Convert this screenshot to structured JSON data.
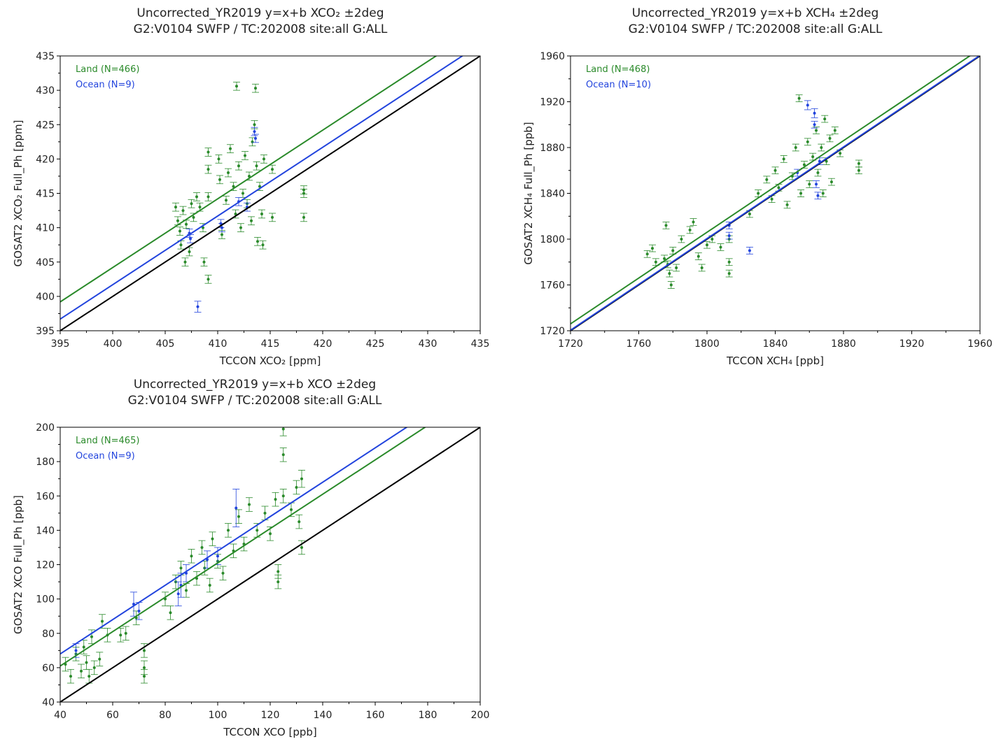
{
  "colors": {
    "land": "#2a8a2a",
    "ocean": "#2244dd",
    "one_to_one": "#000000"
  },
  "chart_data": [
    {
      "type": "scatter",
      "title": [
        "Uncorrected_YR2019 y=x+b  XCO₂ ±2deg",
        "G2:V0104 SWFP / TC:202008 site:all G:ALL"
      ],
      "xlabel": "TCCON XCO₂ [ppm]",
      "ylabel": "GOSAT2 XCO₂ Full_Ph [ppm]",
      "xlim": [
        395,
        435
      ],
      "ylim": [
        395,
        435
      ],
      "xticks": [
        395,
        400,
        405,
        410,
        415,
        420,
        425,
        430,
        435
      ],
      "yticks": [
        395,
        400,
        405,
        410,
        415,
        420,
        425,
        430,
        435
      ],
      "legend_position": "top-left",
      "series": [
        {
          "name": "Land (N=466)",
          "color": "land",
          "offset": 4.2,
          "points": [
            [
              406,
              413,
              0.6
            ],
            [
              406.2,
              411,
              0.6
            ],
            [
              406.4,
              409.5,
              0.6
            ],
            [
              406.5,
              407.5,
              0.6
            ],
            [
              406.7,
              412.5,
              0.6
            ],
            [
              406.9,
              405,
              0.6
            ],
            [
              407,
              410.5,
              0.6
            ],
            [
              407.3,
              406.5,
              0.6
            ],
            [
              407.5,
              413.5,
              0.6
            ],
            [
              407.7,
              411.5,
              0.6
            ],
            [
              408,
              414.5,
              0.6
            ],
            [
              408.3,
              413,
              0.6
            ],
            [
              408.6,
              410,
              0.6
            ],
            [
              408.7,
              405,
              0.6
            ],
            [
              409.1,
              421,
              0.6
            ],
            [
              409.1,
              418.5,
              0.6
            ],
            [
              409.1,
              414.5,
              0.6
            ],
            [
              409.1,
              402.5,
              0.6
            ],
            [
              410.1,
              420,
              0.6
            ],
            [
              410.2,
              417,
              0.6
            ],
            [
              410.4,
              409,
              0.6
            ],
            [
              410.8,
              414,
              0.6
            ],
            [
              411,
              418,
              0.6
            ],
            [
              411.2,
              421.5,
              0.6
            ],
            [
              411.5,
              416,
              0.6
            ],
            [
              411.7,
              412,
              0.6
            ],
            [
              411.8,
              430.6,
              0.6
            ],
            [
              412,
              419,
              0.6
            ],
            [
              412.2,
              410,
              0.6
            ],
            [
              412.4,
              415,
              0.6
            ],
            [
              412.6,
              420.5,
              0.6
            ],
            [
              412.8,
              413.5,
              0.6
            ],
            [
              413,
              417.5,
              0.6
            ],
            [
              413.2,
              411,
              0.6
            ],
            [
              413.3,
              422.5,
              0.6
            ],
            [
              413.5,
              425,
              0.6
            ],
            [
              413.6,
              430.3,
              0.6
            ],
            [
              413.7,
              419,
              0.6
            ],
            [
              413.8,
              408,
              0.6
            ],
            [
              414,
              416,
              0.6
            ],
            [
              414.2,
              412,
              0.6
            ],
            [
              414.4,
              420,
              0.6
            ],
            [
              414.3,
              407.5,
              0.6
            ],
            [
              415.2,
              418.5,
              0.6
            ],
            [
              415.2,
              411.5,
              0.6
            ],
            [
              418.2,
              415.5,
              0.6
            ],
            [
              418.2,
              415,
              0.6
            ],
            [
              418.2,
              411.5,
              0.6
            ]
          ]
        },
        {
          "name": "Ocean (N=9)",
          "color": "ocean",
          "offset": 1.7,
          "points": [
            [
              408.1,
              398.5,
              0.8
            ],
            [
              407.3,
              409.2,
              0.6
            ],
            [
              407.4,
              408.4,
              0.6
            ],
            [
              410.3,
              410.6,
              0.6
            ],
            [
              410.4,
              410,
              0.6
            ],
            [
              412,
              413.8,
              0.6
            ],
            [
              413.5,
              424,
              0.6
            ],
            [
              413.6,
              423,
              0.6
            ],
            [
              412.8,
              413,
              0.6
            ]
          ]
        }
      ]
    },
    {
      "type": "scatter",
      "title": [
        "Uncorrected_YR2019 y=x+b  XCH₄ ±2deg",
        "G2:V0104 SWFP / TC:202008 site:all G:ALL"
      ],
      "xlabel": "TCCON XCH₄ [ppb]",
      "ylabel": "GOSAT2 XCH₄ Full_Ph [ppb]",
      "xlim": [
        1720,
        1960
      ],
      "ylim": [
        1720,
        1960
      ],
      "xticks": [
        1720,
        1760,
        1800,
        1840,
        1880,
        1920,
        1960
      ],
      "yticks": [
        1720,
        1760,
        1800,
        1840,
        1880,
        1920,
        1960
      ],
      "legend_position": "top-left",
      "series": [
        {
          "name": "Land (N=468)",
          "color": "land",
          "offset": 6,
          "points": [
            [
              1765,
              1787,
              3
            ],
            [
              1768,
              1792,
              3
            ],
            [
              1770,
              1780,
              3
            ],
            [
              1775,
              1783,
              3
            ],
            [
              1776,
              1812,
              3
            ],
            [
              1777,
              1778,
              3
            ],
            [
              1778,
              1770,
              3
            ],
            [
              1779,
              1760,
              3
            ],
            [
              1780,
              1790,
              3
            ],
            [
              1782,
              1775,
              3
            ],
            [
              1785,
              1800,
              3
            ],
            [
              1790,
              1808,
              3
            ],
            [
              1792,
              1815,
              3
            ],
            [
              1795,
              1785,
              3
            ],
            [
              1797,
              1775,
              3
            ],
            [
              1800,
              1795,
              3
            ],
            [
              1803,
              1800,
              3
            ],
            [
              1808,
              1793,
              3
            ],
            [
              1813,
              1800,
              3
            ],
            [
              1813,
              1780,
              3
            ],
            [
              1813,
              1770,
              3
            ],
            [
              1825,
              1822,
              3
            ],
            [
              1830,
              1840,
              3
            ],
            [
              1835,
              1852,
              3
            ],
            [
              1838,
              1835,
              3
            ],
            [
              1840,
              1860,
              3
            ],
            [
              1842,
              1845,
              3
            ],
            [
              1845,
              1870,
              3
            ],
            [
              1847,
              1830,
              3
            ],
            [
              1850,
              1855,
              3
            ],
            [
              1852,
              1880,
              3
            ],
            [
              1854,
              1923,
              3
            ],
            [
              1855,
              1840,
              3
            ],
            [
              1857,
              1865,
              3
            ],
            [
              1859,
              1885,
              3
            ],
            [
              1860,
              1848,
              3
            ],
            [
              1862,
              1872,
              3
            ],
            [
              1864,
              1895,
              3
            ],
            [
              1865,
              1858,
              3
            ],
            [
              1867,
              1880,
              3
            ],
            [
              1868,
              1840,
              3
            ],
            [
              1869,
              1905,
              3
            ],
            [
              1870,
              1868,
              3
            ],
            [
              1872,
              1888,
              3
            ],
            [
              1873,
              1850,
              3
            ],
            [
              1875,
              1895,
              3
            ],
            [
              1878,
              1875,
              3
            ],
            [
              1889,
              1866,
              3
            ],
            [
              1889,
              1860,
              3
            ]
          ]
        },
        {
          "name": "Ocean (N=10)",
          "color": "ocean",
          "offset": 0.5,
          "points": [
            [
              1825,
              1790,
              3
            ],
            [
              1859,
              1917,
              4
            ],
            [
              1863,
              1910,
              4
            ],
            [
              1863,
              1900,
              3
            ],
            [
              1864,
              1848,
              3
            ],
            [
              1865,
              1838,
              3
            ],
            [
              1853,
              1858,
              3
            ],
            [
              1813,
              1812,
              3
            ],
            [
              1813,
              1803,
              3
            ],
            [
              1866,
              1868,
              3
            ]
          ]
        }
      ]
    },
    {
      "type": "scatter",
      "title": [
        "Uncorrected_YR2019 y=x+b  XCO ±2deg",
        "G2:V0104 SWFP / TC:202008 site:all G:ALL"
      ],
      "xlabel": "TCCON XCO [ppb]",
      "ylabel": "GOSAT2 XCO Full_Ph [ppb]",
      "xlim": [
        40,
        200
      ],
      "ylim": [
        40,
        200
      ],
      "xticks": [
        40,
        60,
        80,
        100,
        120,
        140,
        160,
        180,
        200
      ],
      "yticks": [
        40,
        60,
        80,
        100,
        120,
        140,
        160,
        180,
        200
      ],
      "legend_position": "top-left",
      "series": [
        {
          "name": "Land (N=465)",
          "color": "land",
          "offset": 21,
          "points": [
            [
              42,
              62,
              4
            ],
            [
              44,
              55,
              4
            ],
            [
              46,
              68,
              4
            ],
            [
              48,
              58,
              4
            ],
            [
              49,
              72,
              4
            ],
            [
              50,
              63,
              4
            ],
            [
              51,
              55,
              4
            ],
            [
              52,
              78,
              4
            ],
            [
              53,
              60,
              4
            ],
            [
              55,
              65,
              4
            ],
            [
              56,
              87,
              4
            ],
            [
              58,
              79,
              4
            ],
            [
              63,
              79,
              4
            ],
            [
              65,
              80,
              4
            ],
            [
              69,
              89,
              4
            ],
            [
              72,
              70,
              4
            ],
            [
              72,
              60,
              4
            ],
            [
              72,
              55,
              4
            ],
            [
              80,
              100,
              4
            ],
            [
              82,
              92,
              4
            ],
            [
              84,
              110,
              4
            ],
            [
              86,
              118,
              4
            ],
            [
              88,
              105,
              4
            ],
            [
              90,
              125,
              4
            ],
            [
              92,
              112,
              4
            ],
            [
              94,
              130,
              4
            ],
            [
              95,
              118,
              4
            ],
            [
              97,
              108,
              4
            ],
            [
              98,
              135,
              4
            ],
            [
              100,
              122,
              4
            ],
            [
              102,
              115,
              4
            ],
            [
              104,
              140,
              4
            ],
            [
              106,
              128,
              4
            ],
            [
              108,
              148,
              4
            ],
            [
              110,
              132,
              4
            ],
            [
              112,
              155,
              4
            ],
            [
              115,
              140,
              4
            ],
            [
              118,
              150,
              4
            ],
            [
              120,
              138,
              4
            ],
            [
              122,
              158,
              4
            ],
            [
              123,
              110,
              4
            ],
            [
              123,
              116,
              4
            ],
            [
              125,
              199,
              4
            ],
            [
              125,
              184,
              4
            ],
            [
              125,
              160,
              4
            ],
            [
              128,
              152,
              4
            ],
            [
              130,
              165,
              4
            ],
            [
              131,
              145,
              4
            ],
            [
              132,
              170,
              5
            ],
            [
              132,
              130,
              4
            ]
          ]
        },
        {
          "name": "Ocean (N=9)",
          "color": "ocean",
          "offset": 28,
          "points": [
            [
              68,
              97,
              7
            ],
            [
              70,
              93,
              5
            ],
            [
              85,
              103,
              7
            ],
            [
              86,
              108,
              7
            ],
            [
              88,
              115,
              5
            ],
            [
              96,
              123,
              5
            ],
            [
              100,
              125,
              5
            ],
            [
              107,
              153,
              11
            ],
            [
              46,
              70,
              4
            ]
          ]
        }
      ]
    }
  ]
}
